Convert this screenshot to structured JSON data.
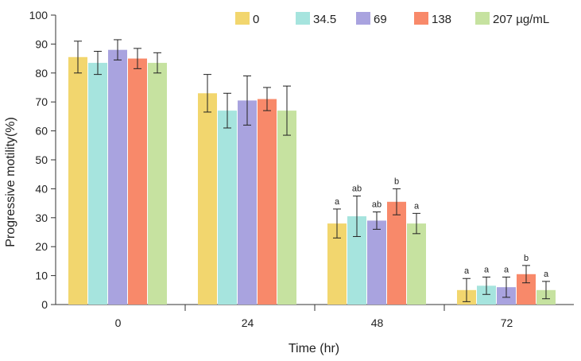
{
  "chart_data": {
    "type": "bar",
    "title": "",
    "xlabel": "Time (hr)",
    "ylabel": "Progressive motility(%)",
    "ylim": [
      0,
      100
    ],
    "yticks": [
      0,
      10,
      20,
      30,
      40,
      50,
      60,
      70,
      80,
      90,
      100
    ],
    "categories": [
      "0",
      "24",
      "48",
      "72"
    ],
    "legend_position": "top-right",
    "series": [
      {
        "name": "0",
        "color": "#f2d66e",
        "values": [
          85.5,
          73,
          28,
          5
        ],
        "errors": [
          5.5,
          6.5,
          5,
          4
        ],
        "labels": [
          "",
          "",
          "a",
          "a"
        ]
      },
      {
        "name": "34.5",
        "color": "#a6e4de",
        "values": [
          83.5,
          67,
          30.5,
          6.5
        ],
        "errors": [
          4,
          6,
          7,
          3
        ],
        "labels": [
          "",
          "",
          "ab",
          "a"
        ]
      },
      {
        "name": "69",
        "color": "#a9a3df",
        "values": [
          88,
          70.5,
          29,
          6
        ],
        "errors": [
          3.5,
          8.5,
          3,
          3.5
        ],
        "labels": [
          "",
          "",
          "ab",
          "a"
        ]
      },
      {
        "name": "138",
        "color": "#f8896a",
        "values": [
          85,
          71,
          35.5,
          10.5
        ],
        "errors": [
          3.5,
          4,
          4.5,
          3
        ],
        "labels": [
          "",
          "",
          "b",
          "b"
        ]
      },
      {
        "name": "207 µg/mL",
        "color": "#c6e2a0",
        "values": [
          83.5,
          67,
          28,
          5
        ],
        "errors": [
          3.5,
          8.5,
          3.5,
          3
        ],
        "labels": [
          "",
          "",
          "a",
          "a"
        ]
      }
    ]
  }
}
